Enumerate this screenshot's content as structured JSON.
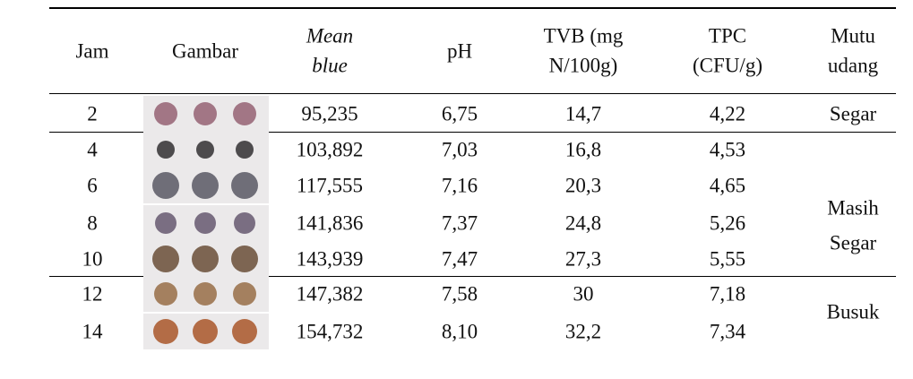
{
  "table": {
    "headers": [
      [
        "Jam"
      ],
      [
        "Gambar"
      ],
      [
        "Mean",
        "blue"
      ],
      [
        "pH"
      ],
      [
        "TVB (mg",
        "N/100g)"
      ],
      [
        "TPC",
        "(CFU/g)"
      ],
      [
        "Mutu",
        "udang"
      ]
    ],
    "rows": [
      [
        "2",
        "95,235",
        "6,75",
        "14,7",
        "4,22"
      ],
      [
        "4",
        "103,892",
        "7,03",
        "16,8",
        "4,53"
      ],
      [
        "6",
        "117,555",
        "7,16",
        "20,3",
        "4,65"
      ],
      [
        "8",
        "141,836",
        "7,37",
        "24,8",
        "5,26"
      ],
      [
        "10",
        "143,939",
        "7,47",
        "27,3",
        "5,55"
      ],
      [
        "12",
        "147,382",
        "7,58",
        "30",
        "7,18"
      ],
      [
        "14",
        "154,732",
        "8,10",
        "32,2",
        "7,34"
      ]
    ],
    "quality": [
      [
        "Segar"
      ],
      [
        "Masih",
        "Segar"
      ],
      [
        "Busuk"
      ]
    ]
  }
}
